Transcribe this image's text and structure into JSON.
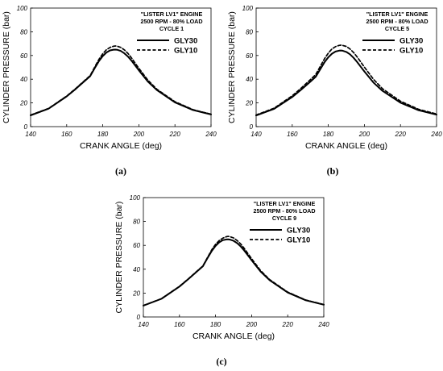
{
  "chart_data": [
    {
      "type": "line",
      "panel_label": "(a)",
      "xlabel": "CRANK ANGLE (deg)",
      "ylabel": "CYLINDER PRESSURE (bar)",
      "xlim": [
        140,
        240
      ],
      "ylim": [
        0,
        100
      ],
      "xticks": [
        140,
        160,
        180,
        200,
        220,
        240
      ],
      "yticks": [
        0,
        20,
        40,
        60,
        80,
        100
      ],
      "legend": {
        "title_lines": [
          "\"LISTER LV1\" ENGINE",
          "2500 RPM - 80% LOAD",
          "CYCLE 1"
        ],
        "position": "top-right"
      },
      "series": [
        {
          "name": "GLY30",
          "style": "solid",
          "x": [
            140,
            150,
            160,
            165,
            170,
            173,
            176,
            178,
            180,
            182,
            184,
            186,
            187,
            188,
            190,
            192,
            194,
            196,
            198,
            200,
            205,
            210,
            220,
            230,
            240
          ],
          "y": [
            9.5,
            15.2,
            25.5,
            31.8,
            38.5,
            42.5,
            50.5,
            55.5,
            59.5,
            62.5,
            64.3,
            64.9,
            65.0,
            64.8,
            63.8,
            61.8,
            59,
            55.5,
            51.5,
            47.5,
            38,
            30.8,
            20.5,
            14,
            10.3
          ]
        },
        {
          "name": "GLY10",
          "style": "dashed",
          "x": [
            140,
            150,
            160,
            165,
            170,
            173,
            176,
            178,
            180,
            182,
            184,
            186,
            187,
            188,
            190,
            192,
            194,
            196,
            198,
            200,
            205,
            210,
            220,
            230,
            240
          ],
          "y": [
            9.7,
            15.4,
            25.8,
            32.2,
            39,
            43,
            51.5,
            57,
            61.5,
            64.8,
            66.8,
            67.8,
            68.0,
            67.8,
            66.8,
            64.7,
            61.6,
            57.8,
            53.5,
            49.2,
            39.2,
            31.5,
            21,
            14.3,
            10.5
          ]
        }
      ]
    },
    {
      "type": "line",
      "panel_label": "(b)",
      "xlabel": "CRANK ANGLE (deg)",
      "ylabel": "CYLINDER PRESSURE (bar)",
      "xlim": [
        140,
        240
      ],
      "ylim": [
        0,
        100
      ],
      "xticks": [
        140,
        160,
        180,
        200,
        220,
        240
      ],
      "yticks": [
        0,
        20,
        40,
        60,
        80,
        100
      ],
      "legend": {
        "title_lines": [
          "\"LISTER LV1\" ENGINE",
          "2500 RPM - 80% LOAD",
          "CYCLE 5"
        ],
        "position": "top-right"
      },
      "series": [
        {
          "name": "GLY30",
          "style": "solid",
          "x": [
            140,
            150,
            160,
            165,
            170,
            173,
            176,
            178,
            180,
            182,
            184,
            186,
            187,
            188,
            190,
            192,
            194,
            196,
            198,
            200,
            205,
            210,
            220,
            230,
            240
          ],
          "y": [
            9.4,
            15,
            25,
            31.2,
            37.8,
            42,
            49.5,
            54.5,
            58.5,
            61.5,
            63.3,
            64.1,
            64.2,
            64,
            63,
            61,
            58,
            54.5,
            50.5,
            46.5,
            37.2,
            30.2,
            20.2,
            13.8,
            10.1
          ]
        },
        {
          "name": "GLY10",
          "style": "dashed",
          "x": [
            140,
            150,
            160,
            165,
            170,
            173,
            176,
            178,
            180,
            182,
            184,
            186,
            187,
            188,
            190,
            192,
            194,
            196,
            198,
            200,
            205,
            210,
            220,
            230,
            240
          ],
          "y": [
            9.8,
            15.6,
            26,
            32.5,
            39.5,
            43.8,
            52,
            57.5,
            62,
            65.5,
            67.5,
            68.5,
            68.7,
            68.5,
            67.6,
            65.5,
            62.5,
            58.8,
            54.5,
            50.2,
            40,
            32,
            21.4,
            14.6,
            10.6
          ]
        }
      ]
    },
    {
      "type": "line",
      "panel_label": "(c)",
      "xlabel": "CRANK ANGLE (deg)",
      "ylabel": "CYLINDER PRESSURE (bar)",
      "xlim": [
        140,
        240
      ],
      "ylim": [
        0,
        100
      ],
      "xticks": [
        140,
        160,
        180,
        200,
        220,
        240
      ],
      "yticks": [
        0,
        20,
        40,
        60,
        80,
        100
      ],
      "legend": {
        "title_lines": [
          "\"LISTER LV1\" ENGINE",
          "2500 RPM - 80% LOAD",
          "CYCLE 9"
        ],
        "position": "top-right"
      },
      "series": [
        {
          "name": "GLY30",
          "style": "solid",
          "x": [
            140,
            150,
            160,
            165,
            170,
            173,
            176,
            178,
            180,
            182,
            184,
            186,
            187,
            188,
            190,
            192,
            194,
            196,
            198,
            200,
            205,
            210,
            220,
            230,
            240
          ],
          "y": [
            9.5,
            15.2,
            25.5,
            31.8,
            38.5,
            42.5,
            50.5,
            55.5,
            59.5,
            62.5,
            64.3,
            64.9,
            65.0,
            64.8,
            63.8,
            61.8,
            59,
            55.5,
            51.5,
            47.5,
            38,
            30.8,
            20.5,
            14,
            10.3
          ]
        },
        {
          "name": "GLY10",
          "style": "dashed",
          "x": [
            140,
            150,
            160,
            165,
            170,
            173,
            176,
            178,
            180,
            182,
            184,
            186,
            187,
            188,
            190,
            192,
            194,
            196,
            198,
            200,
            205,
            210,
            220,
            230,
            240
          ],
          "y": [
            9.6,
            15.3,
            25.7,
            32,
            38.8,
            42.8,
            51,
            56.5,
            60.8,
            64,
            66,
            67.2,
            67.5,
            67.3,
            66.2,
            64,
            61,
            57.3,
            53,
            48.8,
            38.8,
            31.3,
            20.8,
            14.2,
            10.4
          ]
        }
      ]
    }
  ]
}
